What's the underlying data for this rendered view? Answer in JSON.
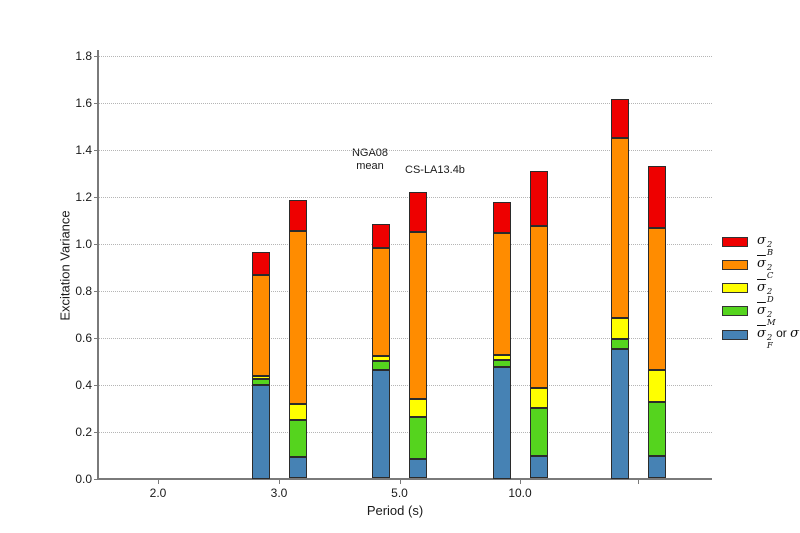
{
  "chart_data": {
    "type": "bar",
    "stacked": true,
    "xlabel": "Period (s)",
    "ylabel": "Excitation Variance",
    "ylim": [
      0,
      1.8
    ],
    "y_tick_labels": [
      "0.0",
      "0.2",
      "0.4",
      "0.6",
      "0.8",
      "1.0",
      "1.2",
      "1.4",
      "1.6",
      "1.8"
    ],
    "x_tick_labels": [
      "2.0",
      "3.0",
      "5.0",
      "10.0",
      ""
    ],
    "grid": "horizontal-dotted",
    "legend_position": "right-outside",
    "stack_order_bottom_to_top": [
      "F",
      "M",
      "D",
      "C",
      "B"
    ],
    "colors": {
      "B": "#ee0000",
      "C": "#ff8c00",
      "D": "#ffff00",
      "M": "#55d41e",
      "F": "#4682b4"
    },
    "groups": [
      {
        "x_label": "2.0",
        "bars": []
      },
      {
        "x_label": "3.0",
        "bars": [
          {
            "name": "NGA08 mean",
            "F": 0.4,
            "M": 0.025,
            "D": 0.01,
            "C": 0.43,
            "B": 0.1,
            "total": 0.965
          },
          {
            "name": "CS-LA13.4b",
            "F": 0.09,
            "M": 0.16,
            "D": 0.065,
            "C": 0.74,
            "B": 0.13,
            "total": 1.185
          }
        ]
      },
      {
        "x_label": "5.0",
        "bars": [
          {
            "name": "NGA08 mean",
            "F": 0.46,
            "M": 0.04,
            "D": 0.02,
            "C": 0.46,
            "B": 0.105,
            "total": 1.085
          },
          {
            "name": "CS-LA13.4b",
            "F": 0.085,
            "M": 0.175,
            "D": 0.08,
            "C": 0.71,
            "B": 0.17,
            "total": 1.22
          }
        ]
      },
      {
        "x_label": "10.0",
        "bars": [
          {
            "name": "NGA08 mean",
            "F": 0.475,
            "M": 0.03,
            "D": 0.02,
            "C": 0.52,
            "B": 0.13,
            "total": 1.175
          },
          {
            "name": "CS-LA13.4b",
            "F": 0.095,
            "M": 0.205,
            "D": 0.085,
            "C": 0.69,
            "B": 0.235,
            "total": 1.31
          }
        ]
      },
      {
        "x_label": "",
        "bars": [
          {
            "name": "NGA08 mean",
            "F": 0.55,
            "M": 0.045,
            "D": 0.09,
            "C": 0.765,
            "B": 0.165,
            "total": 1.615
          },
          {
            "name": "CS-LA13.4b",
            "F": 0.095,
            "M": 0.23,
            "D": 0.135,
            "C": 0.605,
            "B": 0.265,
            "total": 1.33
          }
        ]
      }
    ]
  },
  "annotations": {
    "nga08": "NGA08\nmean",
    "cs": "CS-LA13.4b"
  },
  "legend": {
    "items": [
      {
        "id": "B",
        "color": "#ee0000",
        "overbar": false,
        "sup": "2",
        "sub": "B",
        "suffix_parts": []
      },
      {
        "id": "C",
        "color": "#ff8c00",
        "overbar": true,
        "sup": "2",
        "sub": "C",
        "suffix_parts": []
      },
      {
        "id": "D",
        "color": "#ffff00",
        "overbar": true,
        "sup": "2",
        "sub": "D",
        "suffix_parts": []
      },
      {
        "id": "M",
        "color": "#55d41e",
        "overbar": true,
        "sup": "2",
        "sub": "M",
        "suffix_parts": []
      },
      {
        "id": "F",
        "color": "#4682b4",
        "overbar": true,
        "sup": "2",
        "sub": "F",
        "suffix_parts": [
          {
            "t": " or ",
            "italic": false
          },
          {
            "t": "σ",
            "italic": true
          }
        ]
      }
    ],
    "sigma": "σ"
  }
}
